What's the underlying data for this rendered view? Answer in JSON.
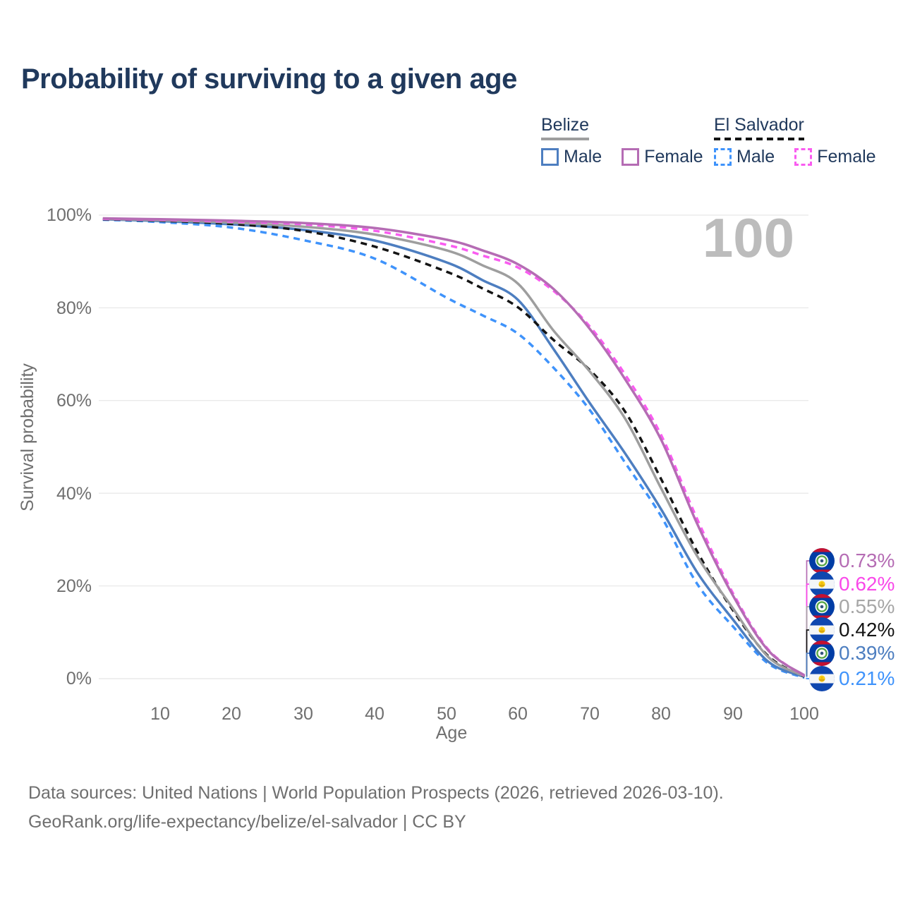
{
  "title": "Probability of surviving to a given age",
  "watermark": "100",
  "legend": {
    "groups": [
      {
        "country": "Belize",
        "underline_style": "solid",
        "underline_color": "#9e9e9e",
        "items": [
          {
            "label": "Male",
            "color": "#4d7ec0",
            "dashed": false
          },
          {
            "label": "Female",
            "color": "#b56cb4",
            "dashed": false
          }
        ]
      },
      {
        "country": "El Salvador",
        "underline_style": "dashed",
        "underline_color": "#141414",
        "items": [
          {
            "label": "Male",
            "color": "#3f93fb",
            "dashed": true
          },
          {
            "label": "Female",
            "color": "#f95cf0",
            "dashed": true
          }
        ]
      }
    ]
  },
  "chart_data": {
    "type": "line",
    "title": "Probability of surviving to a given age",
    "xlabel": "Age",
    "ylabel": "Survival probability",
    "xlim": [
      0,
      110
    ],
    "ylim": [
      0,
      100
    ],
    "grid": "horizontal-only",
    "legend_position": "top-right",
    "x_ticks": [
      10,
      20,
      30,
      40,
      50,
      60,
      70,
      80,
      90,
      100
    ],
    "y_ticks": [
      "0%",
      "20%",
      "40%",
      "60%",
      "80%",
      "100%"
    ],
    "hovered_age": "100",
    "x": [
      2,
      10,
      20,
      30,
      40,
      50,
      55,
      60,
      65,
      70,
      75,
      80,
      85,
      90,
      95,
      100
    ],
    "series": [
      {
        "id": "belize-female",
        "name": "Belize Female",
        "color": "#b56cb4",
        "dash": "solid",
        "values": [
          99.3,
          99.1,
          98.8,
          98.3,
          97.2,
          94.7,
          92.4,
          89.4,
          84.0,
          75.5,
          64.5,
          51.5,
          33.5,
          18.0,
          6.0,
          0.73
        ]
      },
      {
        "id": "el-salvador-female",
        "name": "El Salvador Female",
        "color": "#f95cf0",
        "dash": "dashed",
        "values": [
          99.2,
          99.0,
          98.6,
          98.0,
          96.6,
          93.6,
          91.3,
          88.7,
          83.6,
          76.0,
          65.5,
          52.5,
          34.5,
          18.5,
          6.2,
          0.62
        ]
      },
      {
        "id": "belize-both",
        "name": "Belize Both sexes",
        "color": "#9e9e9e",
        "dash": "solid",
        "values": [
          99.2,
          98.9,
          98.4,
          97.5,
          95.8,
          92.4,
          89.2,
          85.2,
          75.0,
          66.3,
          56.0,
          41.0,
          26.5,
          15.2,
          4.6,
          0.55
        ]
      },
      {
        "id": "el-salvador-both",
        "name": "El Salvador Both sexes",
        "color": "#141414",
        "dash": "dashed",
        "values": [
          99.1,
          98.8,
          98.1,
          96.6,
          93.2,
          87.8,
          84.2,
          80.1,
          73.0,
          66.6,
          57.5,
          43.0,
          27.5,
          14.8,
          4.8,
          0.42
        ]
      },
      {
        "id": "belize-male",
        "name": "Belize Male",
        "color": "#4d7ec0",
        "dash": "solid",
        "values": [
          99.1,
          98.7,
          98.0,
          96.8,
          94.5,
          89.8,
          86.0,
          81.7,
          71.0,
          59.5,
          48.5,
          36.5,
          23.0,
          12.8,
          3.6,
          0.39
        ]
      },
      {
        "id": "el-salvador-male",
        "name": "El Salvador Male",
        "color": "#3f93fb",
        "dash": "dashed",
        "values": [
          99.0,
          98.5,
          97.3,
          94.6,
          90.6,
          82.2,
          78.4,
          74.4,
          67.0,
          58.0,
          46.5,
          35.0,
          20.5,
          11.3,
          3.2,
          0.21
        ]
      }
    ]
  },
  "end_labels": [
    {
      "text": "0.73%",
      "value_pct": 0.73,
      "color": "#b56cb4",
      "flag": "belize",
      "series": "belize-female"
    },
    {
      "text": "0.62%",
      "value_pct": 0.62,
      "color": "#f949e9",
      "flag": "el-salvador",
      "series": "el-salvador-female"
    },
    {
      "text": "0.55%",
      "value_pct": 0.55,
      "color": "#a6a6a6",
      "flag": "belize",
      "series": "belize-both"
    },
    {
      "text": "0.42%",
      "value_pct": 0.42,
      "color": "#141414",
      "flag": "el-salvador",
      "series": "el-salvador-both"
    },
    {
      "text": "0.39%",
      "value_pct": 0.39,
      "color": "#4d7ec0",
      "flag": "belize",
      "series": "belize-male"
    },
    {
      "text": "0.21%",
      "value_pct": 0.21,
      "color": "#3f93fb",
      "flag": "el-salvador",
      "series": "el-salvador-male"
    }
  ],
  "footer": {
    "line1": "Data sources: United Nations | World Population Prospects (2026, retrieved 2026-03-10).",
    "line2": "GeoRank.org/life-expectancy/belize/el-salvador | CC BY"
  }
}
